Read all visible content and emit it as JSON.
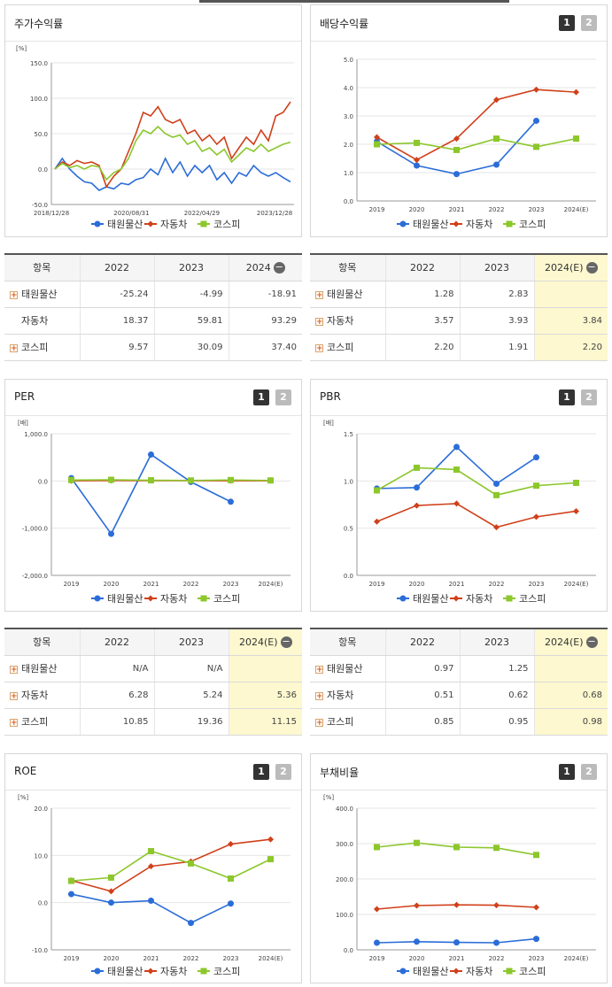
{
  "colors": {
    "taewon": "#2b6dd8",
    "auto": "#d0401a",
    "kospi": "#8cc72c"
  },
  "legend": [
    "태원물산",
    "자동차",
    "코스피"
  ],
  "panels": {
    "stock": {
      "title": "주가수익률",
      "chart_data": {
        "type": "line",
        "title": "주가수익률",
        "ylabel": "[%]",
        "ylim": [
          -50,
          150
        ],
        "yticks": [
          "150.0",
          "100.0",
          "50.0",
          "0.0",
          "-50.0"
        ],
        "xticks": [
          "2018/12/28",
          "2020/08/31",
          "2022/04/29",
          "2023/12/28"
        ],
        "x": [
          0,
          2,
          4,
          6,
          8,
          10,
          12,
          14,
          16,
          18,
          20,
          22,
          24,
          26,
          28,
          30,
          32,
          34,
          36,
          38,
          40,
          42,
          44,
          46,
          48,
          50,
          52,
          54,
          56,
          58,
          60,
          62,
          64
        ],
        "series": [
          {
            "name": "태원물산",
            "values": [
              0,
              15,
              0,
              -10,
              -18,
              -20,
              -30,
              -25,
              -28,
              -20,
              -22,
              -15,
              -12,
              0,
              -8,
              15,
              -5,
              10,
              -10,
              5,
              -5,
              5,
              -15,
              -5,
              -20,
              -5,
              -10,
              5,
              -5,
              -10,
              -5,
              -12,
              -18
            ]
          },
          {
            "name": "자동차",
            "values": [
              0,
              10,
              5,
              12,
              8,
              10,
              5,
              -25,
              -10,
              0,
              25,
              50,
              80,
              75,
              88,
              70,
              65,
              70,
              50,
              55,
              40,
              48,
              35,
              45,
              15,
              30,
              45,
              35,
              55,
              40,
              75,
              80,
              95
            ]
          },
          {
            "name": "코스피",
            "values": [
              0,
              8,
              2,
              5,
              0,
              5,
              3,
              -15,
              -5,
              0,
              15,
              40,
              55,
              50,
              60,
              50,
              45,
              48,
              35,
              40,
              25,
              30,
              20,
              28,
              10,
              20,
              30,
              25,
              35,
              25,
              30,
              35,
              38
            ]
          }
        ]
      }
    },
    "dividend": {
      "title": "배당수익률",
      "chart_data": {
        "type": "line",
        "title": "배당수익률",
        "ylim": [
          0,
          5
        ],
        "yticks": [
          "5.0",
          "4.0",
          "3.0",
          "2.0",
          "1.0",
          "0.0"
        ],
        "categories": [
          "2019",
          "2020",
          "2021",
          "2022",
          "2023",
          "2024(E)"
        ],
        "series": [
          {
            "name": "태원물산",
            "values": [
              2.1,
              1.25,
              0.95,
              1.28,
              2.83,
              null
            ]
          },
          {
            "name": "자동차",
            "values": [
              2.25,
              1.45,
              2.2,
              3.57,
              3.93,
              3.84
            ]
          },
          {
            "name": "코스피",
            "values": [
              2.0,
              2.05,
              1.8,
              2.2,
              1.91,
              2.2
            ]
          }
        ]
      }
    },
    "per": {
      "title": "PER",
      "chart_data": {
        "type": "line",
        "title": "PER",
        "ylabel": "[배]",
        "ylim": [
          -2000,
          1000
        ],
        "yticks": [
          "1,000.0",
          "0.0",
          "-1,000.0",
          "-2,000.0"
        ],
        "categories": [
          "2019",
          "2020",
          "2021",
          "2022",
          "2023",
          "2024(E)"
        ],
        "series": [
          {
            "name": "태원물산",
            "values": [
              60,
              -1120,
              560,
              -20,
              -440,
              null
            ]
          },
          {
            "name": "자동차",
            "values": [
              5,
              10,
              8,
              6.28,
              5.24,
              5.36
            ]
          },
          {
            "name": "코스피",
            "values": [
              20,
              25,
              15,
              10.85,
              19.36,
              11.15
            ]
          }
        ]
      }
    },
    "pbr": {
      "title": "PBR",
      "chart_data": {
        "type": "line",
        "title": "PBR",
        "ylabel": "[배]",
        "ylim": [
          0,
          1.5
        ],
        "yticks": [
          "1.5",
          "1.0",
          "0.5",
          "0.0"
        ],
        "categories": [
          "2019",
          "2020",
          "2021",
          "2022",
          "2023",
          "2024(E)"
        ],
        "series": [
          {
            "name": "태원물산",
            "values": [
              0.92,
              0.93,
              1.36,
              0.97,
              1.25,
              null
            ]
          },
          {
            "name": "자동차",
            "values": [
              0.57,
              0.74,
              0.76,
              0.51,
              0.62,
              0.68
            ]
          },
          {
            "name": "코스피",
            "values": [
              0.9,
              1.14,
              1.12,
              0.85,
              0.95,
              0.98
            ]
          }
        ]
      }
    },
    "roe": {
      "title": "ROE",
      "chart_data": {
        "type": "line",
        "title": "ROE",
        "ylabel": "[%]",
        "ylim": [
          -10,
          20
        ],
        "yticks": [
          "20.0",
          "10.0",
          "0.0",
          "-10.0"
        ],
        "categories": [
          "2019",
          "2020",
          "2021",
          "2022",
          "2023",
          "2024(E)"
        ],
        "series": [
          {
            "name": "태원물산",
            "values": [
              1.8,
              0,
              0.4,
              -4.3,
              -0.2,
              null
            ]
          },
          {
            "name": "자동차",
            "values": [
              4.7,
              2.4,
              7.7,
              8.7,
              12.4,
              13.4
            ]
          },
          {
            "name": "코스피",
            "values": [
              4.6,
              5.3,
              10.9,
              8.3,
              5.1,
              9.2
            ]
          }
        ]
      }
    },
    "debt": {
      "title": "부채비율",
      "chart_data": {
        "type": "line",
        "title": "부채비율",
        "ylabel": "[%]",
        "ylim": [
          0,
          400
        ],
        "yticks": [
          "400.0",
          "300.0",
          "200.0",
          "100.0",
          "0.0"
        ],
        "categories": [
          "2019",
          "2020",
          "2021",
          "2022",
          "2023",
          "2024(E)"
        ],
        "series": [
          {
            "name": "태원물산",
            "values": [
              20,
              23,
              21,
              20,
              31,
              null
            ]
          },
          {
            "name": "자동차",
            "values": [
              115,
              125,
              127,
              126,
              120,
              null
            ]
          },
          {
            "name": "코스피",
            "values": [
              290,
              302,
              290,
              288,
              268,
              null
            ]
          }
        ]
      }
    }
  },
  "tables": {
    "stock": {
      "headers": [
        "항목",
        "2022",
        "2023",
        "2024"
      ],
      "rows": [
        {
          "name": "태원물산",
          "values": [
            "-25.24",
            "-4.99",
            "-18.91"
          ]
        },
        {
          "name": "자동차",
          "values": [
            "18.37",
            "59.81",
            "93.29"
          ]
        },
        {
          "name": "코스피",
          "values": [
            "9.57",
            "30.09",
            "37.40"
          ]
        }
      ]
    },
    "dividend": {
      "headers": [
        "항목",
        "2022",
        "2023",
        "2024(E)"
      ],
      "rows": [
        {
          "name": "태원물산",
          "values": [
            "1.28",
            "2.83",
            ""
          ]
        },
        {
          "name": "자동차",
          "values": [
            "3.57",
            "3.93",
            "3.84"
          ]
        },
        {
          "name": "코스피",
          "values": [
            "2.20",
            "1.91",
            "2.20"
          ]
        }
      ]
    },
    "per": {
      "headers": [
        "항목",
        "2022",
        "2023",
        "2024(E)"
      ],
      "rows": [
        {
          "name": "태원물산",
          "values": [
            "N/A",
            "N/A",
            ""
          ]
        },
        {
          "name": "자동차",
          "values": [
            "6.28",
            "5.24",
            "5.36"
          ]
        },
        {
          "name": "코스피",
          "values": [
            "10.85",
            "19.36",
            "11.15"
          ]
        }
      ]
    },
    "pbr": {
      "headers": [
        "항목",
        "2022",
        "2023",
        "2024(E)"
      ],
      "rows": [
        {
          "name": "태원물산",
          "values": [
            "0.97",
            "1.25",
            ""
          ]
        },
        {
          "name": "자동차",
          "values": [
            "0.51",
            "0.62",
            "0.68"
          ]
        },
        {
          "name": "코스피",
          "values": [
            "0.85",
            "0.95",
            "0.98"
          ]
        }
      ]
    }
  },
  "toggle": {
    "one": "1",
    "two": "2"
  }
}
